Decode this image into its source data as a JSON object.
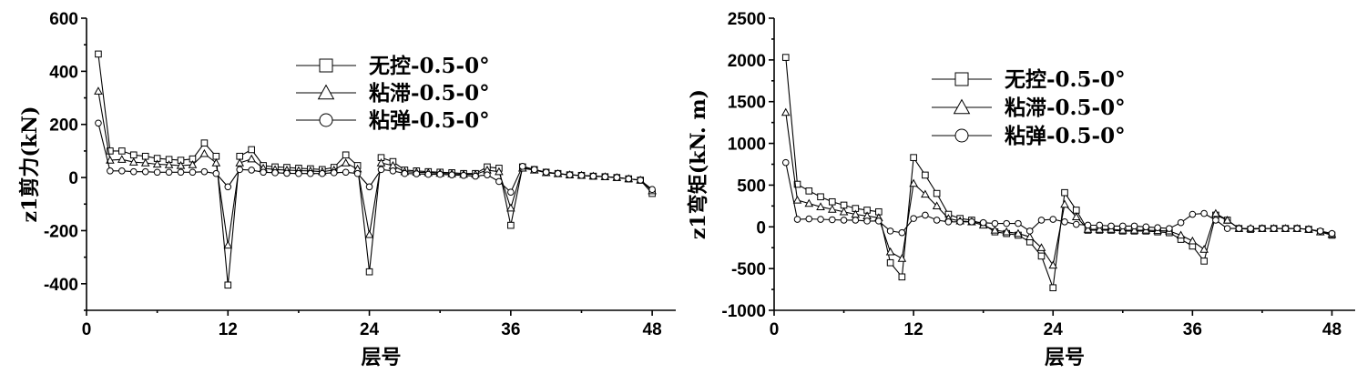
{
  "chart_data": [
    {
      "type": "line",
      "xlabel": "层号",
      "ylabel": "z1剪力(kN)",
      "xlim": [
        0,
        50
      ],
      "ylim": [
        -500,
        600
      ],
      "xticks": [
        0,
        12,
        24,
        36,
        48
      ],
      "yticks": [
        -400,
        -200,
        0,
        200,
        400,
        600
      ],
      "x_tick_labels": [
        "0",
        "12",
        "24",
        "36",
        "48"
      ],
      "y_tick_labels": [
        "-400",
        "-200",
        "0",
        "200",
        "400",
        "600"
      ],
      "legend_placement": "top-center",
      "x": [
        1,
        2,
        3,
        4,
        5,
        6,
        7,
        8,
        9,
        10,
        11,
        12,
        13,
        14,
        15,
        16,
        17,
        18,
        19,
        20,
        21,
        22,
        23,
        24,
        25,
        26,
        27,
        28,
        29,
        30,
        31,
        32,
        33,
        34,
        35,
        36,
        37,
        38,
        39,
        40,
        41,
        42,
        43,
        44,
        45,
        46,
        47,
        48
      ],
      "series": [
        {
          "name": "无控-0.5-0°",
          "marker": "square",
          "values": [
            465,
            100,
            100,
            85,
            80,
            72,
            68,
            65,
            70,
            130,
            80,
            -405,
            80,
            105,
            45,
            40,
            38,
            35,
            33,
            30,
            38,
            85,
            45,
            -355,
            75,
            60,
            28,
            25,
            22,
            20,
            18,
            15,
            15,
            40,
            35,
            -180,
            40,
            30,
            20,
            15,
            10,
            8,
            5,
            3,
            0,
            -5,
            -10,
            -60
          ]
        },
        {
          "name": "粘滞-0.5-0°",
          "marker": "triangle",
          "values": [
            325,
            65,
            68,
            58,
            55,
            50,
            48,
            45,
            48,
            90,
            55,
            -255,
            55,
            70,
            35,
            30,
            28,
            26,
            25,
            22,
            28,
            55,
            32,
            -215,
            55,
            45,
            22,
            20,
            18,
            16,
            14,
            12,
            12,
            28,
            22,
            -115,
            35,
            28,
            18,
            14,
            10,
            8,
            5,
            3,
            0,
            -5,
            -10,
            -50
          ]
        },
        {
          "name": "粘弹-0.5-0°",
          "marker": "circle",
          "values": [
            205,
            25,
            25,
            22,
            22,
            20,
            20,
            20,
            20,
            22,
            15,
            -35,
            30,
            28,
            20,
            18,
            16,
            15,
            15,
            15,
            18,
            20,
            15,
            -35,
            30,
            25,
            15,
            14,
            12,
            12,
            10,
            8,
            5,
            10,
            -15,
            -55,
            42,
            30,
            20,
            15,
            10,
            8,
            5,
            3,
            0,
            -5,
            -10,
            -45
          ]
        }
      ]
    },
    {
      "type": "line",
      "xlabel": "层号",
      "ylabel": "z1弯矩(kN. m)",
      "xlim": [
        0,
        50
      ],
      "ylim": [
        -1000,
        2500
      ],
      "xticks": [
        0,
        12,
        24,
        36,
        48
      ],
      "yticks": [
        -1000,
        -500,
        0,
        500,
        1000,
        1500,
        2000,
        2500
      ],
      "x_tick_labels": [
        "0",
        "12",
        "24",
        "36",
        "48"
      ],
      "y_tick_labels": [
        "-1000",
        "-500",
        "0",
        "500",
        "1000",
        "1500",
        "2000",
        "2500"
      ],
      "legend_placement": "top-center",
      "x": [
        1,
        2,
        3,
        4,
        5,
        6,
        7,
        8,
        9,
        10,
        11,
        12,
        13,
        14,
        15,
        16,
        17,
        18,
        19,
        20,
        21,
        22,
        23,
        24,
        25,
        26,
        27,
        28,
        29,
        30,
        31,
        32,
        33,
        34,
        35,
        36,
        37,
        38,
        39,
        40,
        41,
        42,
        43,
        44,
        45,
        46,
        47,
        48
      ],
      "series": [
        {
          "name": "无控-0.5-0°",
          "marker": "square",
          "values": [
            2030,
            510,
            430,
            360,
            300,
            260,
            220,
            200,
            180,
            -430,
            -600,
            830,
            620,
            400,
            150,
            100,
            80,
            30,
            -60,
            -80,
            -100,
            -180,
            -350,
            -730,
            410,
            200,
            -40,
            -40,
            -40,
            -50,
            -50,
            -50,
            -60,
            -70,
            -150,
            -230,
            -410,
            140,
            80,
            -20,
            -30,
            -20,
            -20,
            -20,
            -20,
            -30,
            -60,
            -100
          ]
        },
        {
          "name": "粘滞-0.5-0°",
          "marker": "triangle",
          "values": [
            1370,
            320,
            280,
            240,
            210,
            180,
            150,
            130,
            110,
            -300,
            -380,
            520,
            390,
            250,
            100,
            70,
            60,
            20,
            -40,
            -60,
            -80,
            -120,
            -250,
            -460,
            270,
            120,
            -30,
            -30,
            -30,
            -40,
            -40,
            -40,
            -45,
            -50,
            -100,
            -170,
            -270,
            160,
            80,
            -20,
            -20,
            -20,
            -20,
            -20,
            -20,
            -30,
            -60,
            -90
          ]
        },
        {
          "name": "粘弹-0.5-0°",
          "marker": "circle",
          "values": [
            770,
            90,
            95,
            90,
            85,
            80,
            80,
            70,
            70,
            -50,
            -70,
            100,
            140,
            80,
            60,
            60,
            60,
            50,
            40,
            40,
            40,
            -50,
            80,
            90,
            60,
            30,
            20,
            20,
            10,
            10,
            10,
            0,
            -10,
            -20,
            50,
            150,
            160,
            80,
            -20,
            -20,
            -20,
            -20,
            -20,
            -20,
            -20,
            -30,
            -50,
            -80
          ]
        }
      ]
    }
  ]
}
